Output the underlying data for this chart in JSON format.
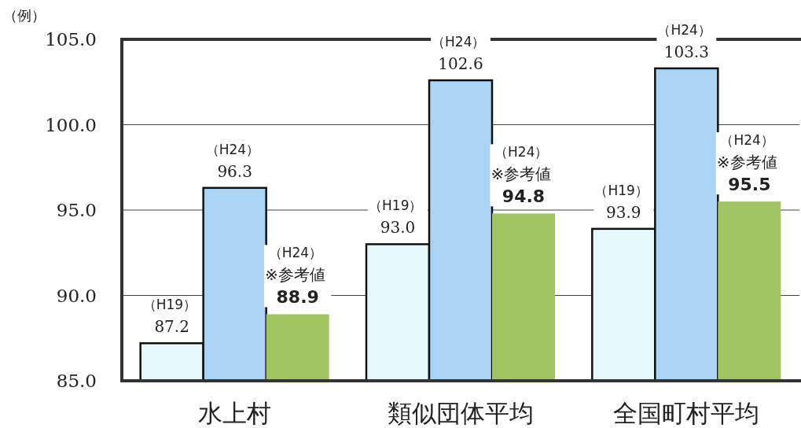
{
  "chart_data": {
    "type": "bar",
    "ylabel": "（例）",
    "categories": [
      "水上村",
      "類似団体平均",
      "全国町村平均"
    ],
    "series": [
      {
        "color": "#e6f7fd",
        "values": [
          87.2,
          93.0,
          93.9
        ],
        "value_labels": [
          "（H19） 87.2",
          "（H19） 93.0",
          "（H19） 93.9"
        ]
      },
      {
        "color": "#a9d4f5",
        "values": [
          96.3,
          102.6,
          103.3
        ],
        "value_labels": [
          "（H24） 96.3",
          "（H24） 102.6",
          "（H24） 103.3"
        ]
      },
      {
        "color": "#a3c462",
        "values": [
          88.9,
          94.8,
          95.5
        ],
        "value_labels": [
          "（H24） ※参考値 88.9",
          "（H24） ※参考値 94.8",
          "（H24） ※参考値 95.5"
        ]
      }
    ],
    "ylim": [
      85,
      105
    ],
    "yticks": [
      {
        "value": 85,
        "label": "85.0"
      },
      {
        "value": 90,
        "label": "90.0"
      },
      {
        "value": 95,
        "label": "95.0"
      },
      {
        "value": 100,
        "label": "100.0"
      },
      {
        "value": 105,
        "label": "105.0"
      }
    ],
    "grid": "y"
  }
}
